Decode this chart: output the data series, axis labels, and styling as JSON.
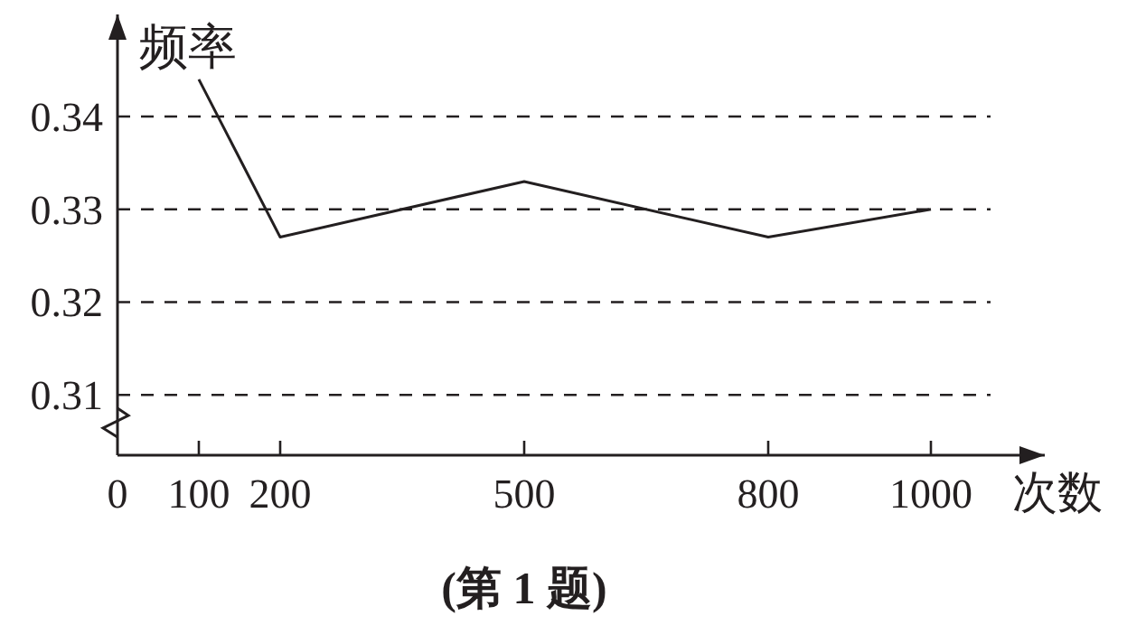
{
  "chart_data": {
    "type": "line",
    "xlabel": "次数",
    "ylabel": "频率",
    "annotations": [
      "(第 1 题)"
    ],
    "x": [
      100,
      200,
      500,
      800,
      1000
    ],
    "series": [
      {
        "color": "#231f20",
        "values": [
          0.344,
          0.327,
          0.333,
          0.327,
          0.33
        ]
      }
    ],
    "xlim": [
      0,
      1140
    ],
    "ylim": [
      0.3035,
      0.351
    ],
    "xticks": [
      0,
      100,
      200,
      500,
      800,
      1000
    ],
    "yticks": [
      0.31,
      0.32,
      0.33,
      0.34
    ],
    "grid": "y",
    "line_style": "solid",
    "marker": "none"
  }
}
